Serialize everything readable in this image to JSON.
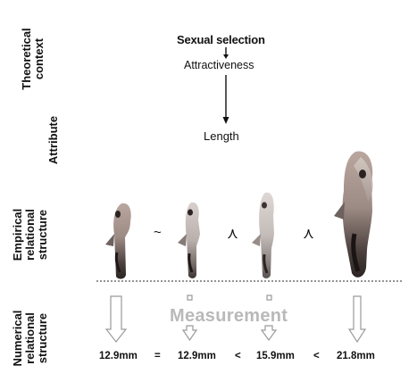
{
  "rows": {
    "theoretical": [
      "Theoretical",
      "context"
    ],
    "attribute": [
      "Attribute"
    ],
    "empirical": [
      "Empirical",
      "relational",
      "structure"
    ],
    "numerical": [
      "Numerical",
      "relational",
      "structure"
    ]
  },
  "concepts": {
    "sexual_selection": "Sexual selection",
    "attractiveness": "Attractiveness",
    "length": "Length"
  },
  "measurement_label": "Measurement",
  "empirical_relations": [
    "~",
    "≺",
    "≺"
  ],
  "values": [
    "12.9mm",
    "12.9mm",
    "15.9mm",
    "21.8mm"
  ],
  "numerical_relations": [
    "=",
    "<",
    "<"
  ],
  "colors": {
    "arrow": "#aaaaaa",
    "baseline": "#555555",
    "measure_text": "#b9b9b9"
  }
}
